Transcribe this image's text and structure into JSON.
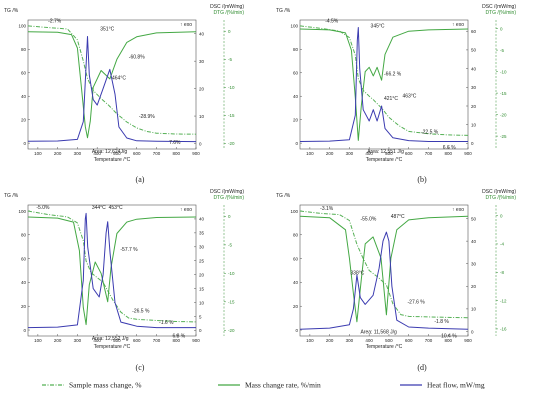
{
  "axis_labels": {
    "left_unit": "TG /%",
    "right_unit_dsc": "DSC /(mW/mg)",
    "right_unit_dtg": "DTG /(%/min)",
    "exo": "↑ exo",
    "x_label": "Temperature /°C"
  },
  "legend": {
    "items": [
      {
        "label": "Sample mass change, %",
        "color": "#55b055",
        "style": "dashdot"
      },
      {
        "label": "Mass change rate, %/min",
        "color": "#44a844",
        "style": "solid"
      },
      {
        "label": "Heat flow, mW/mg",
        "color": "#3b3bb0",
        "style": "solid"
      }
    ]
  },
  "colors": {
    "tg": "#55b055",
    "dtg": "#44a844",
    "dsc": "#3b3bb0",
    "axis": "#555555",
    "dtg_axis": "#2e8b2e"
  },
  "chart_data": [
    {
      "panel": "(a)",
      "type": "line",
      "xlim": [
        50,
        900
      ],
      "x_ticks": [
        100,
        200,
        300,
        400,
        500,
        600,
        700,
        800,
        900
      ],
      "tg_ticks": [
        0,
        20,
        40,
        60,
        80,
        100
      ],
      "dsc_ticks": [
        0,
        10,
        20,
        30,
        40
      ],
      "dtg_ticks": [
        0,
        -5,
        -10,
        -15,
        -20
      ],
      "tg_lim": [
        -5,
        105
      ],
      "dsc_lim": [
        -2,
        45
      ],
      "dtg_lim": [
        -21,
        2
      ],
      "annotations": [
        "-2.7%",
        "351°C",
        "-60.8%",
        "464°C",
        "-28.9%",
        "7.6%",
        "Area: 12,624J/g"
      ],
      "series": [
        {
          "name": "Sample mass change, %",
          "axis": "tg",
          "x": [
            50,
            150,
            250,
            300,
            330,
            351,
            380,
            420,
            460,
            500,
            550,
            600,
            650,
            700,
            800,
            900
          ],
          "y": [
            100,
            98.6,
            97.3,
            88,
            70,
            55,
            45,
            38,
            32,
            25,
            18,
            13,
            10,
            8.5,
            7.8,
            7.6
          ]
        },
        {
          "name": "Mass change rate, %/min",
          "axis": "dtg",
          "x": [
            50,
            200,
            270,
            300,
            320,
            340,
            351,
            365,
            380,
            420,
            464,
            500,
            550,
            600,
            700,
            900
          ],
          "y": [
            -0.1,
            -0.2,
            -0.6,
            -3,
            -10,
            -17,
            -19,
            -16,
            -10,
            -7,
            -8.5,
            -5,
            -2,
            -1,
            -0.3,
            -0.1
          ]
        },
        {
          "name": "Heat flow, mW/mg",
          "axis": "dsc",
          "x": [
            50,
            200,
            300,
            330,
            345,
            351,
            360,
            380,
            400,
            430,
            464,
            490,
            510,
            550,
            600,
            700,
            900
          ],
          "y": [
            0.8,
            0.9,
            1.5,
            8,
            30,
            39,
            25,
            16,
            14,
            20,
            27,
            18,
            6,
            2,
            1,
            0.8,
            0.7
          ]
        }
      ]
    },
    {
      "panel": "(b)",
      "type": "line",
      "xlim": [
        50,
        900
      ],
      "x_ticks": [
        100,
        200,
        300,
        400,
        500,
        600,
        700,
        800,
        900
      ],
      "tg_ticks": [
        0,
        20,
        40,
        60,
        80,
        100
      ],
      "dsc_ticks": [
        0,
        10,
        20,
        30,
        40,
        50,
        60
      ],
      "dtg_ticks": [
        0,
        -5,
        -10,
        -15,
        -20,
        -25
      ],
      "tg_lim": [
        -5,
        105
      ],
      "dsc_lim": [
        -3,
        66
      ],
      "dtg_lim": [
        -28,
        2
      ],
      "annotations": [
        "-4.5%",
        "345°C",
        "-66.2 %",
        "421°C",
        "463°C",
        "-22.5 %",
        "6.6 %",
        "Area: 12,551 J/g"
      ],
      "series": [
        {
          "name": "Sample mass change, %",
          "axis": "tg",
          "x": [
            50,
            150,
            250,
            300,
            330,
            345,
            370,
            400,
            421,
            450,
            463,
            500,
            550,
            600,
            700,
            800,
            900
          ],
          "y": [
            100,
            98,
            95.5,
            90,
            75,
            55,
            45,
            40,
            37,
            32,
            30,
            22,
            15,
            10,
            8,
            7,
            6.6
          ]
        },
        {
          "name": "Mass change rate, %/min",
          "axis": "dtg",
          "x": [
            50,
            200,
            280,
            310,
            330,
            345,
            360,
            380,
            400,
            421,
            440,
            463,
            480,
            520,
            600,
            700,
            900
          ],
          "y": [
            -0.1,
            -0.3,
            -1,
            -5,
            -16,
            -26,
            -18,
            -10,
            -9,
            -11,
            -9,
            -12,
            -6,
            -2,
            -0.6,
            -0.3,
            -0.1
          ]
        },
        {
          "name": "Heat flow, mW/mg",
          "axis": "dsc",
          "x": [
            50,
            200,
            300,
            330,
            340,
            345,
            352,
            370,
            400,
            421,
            440,
            463,
            480,
            520,
            600,
            700,
            900
          ],
          "y": [
            1,
            1.2,
            2,
            15,
            55,
            62,
            40,
            18,
            12,
            18,
            12,
            20,
            8,
            3,
            1.5,
            1,
            1
          ]
        }
      ]
    },
    {
      "panel": "(c)",
      "type": "line",
      "xlim": [
        50,
        900
      ],
      "x_ticks": [
        100,
        200,
        300,
        400,
        500,
        600,
        700,
        800,
        900
      ],
      "tg_ticks": [
        0,
        20,
        40,
        60,
        80,
        100
      ],
      "dsc_ticks": [
        0,
        5,
        10,
        15,
        20,
        25,
        30,
        35,
        40
      ],
      "dtg_ticks": [
        0,
        -5,
        -10,
        -15,
        -20
      ],
      "tg_lim": [
        -5,
        105
      ],
      "dsc_lim": [
        -2,
        45
      ],
      "dtg_lim": [
        -21,
        2
      ],
      "annotations": [
        "-5.0%",
        "344°C",
        "453°C",
        "-57.7 %",
        "-26.5 %",
        "-1.6 %",
        "6.8 %",
        "Area: 12,552 J/g"
      ],
      "series": [
        {
          "name": "Sample mass change, %",
          "axis": "tg",
          "x": [
            50,
            150,
            250,
            300,
            330,
            344,
            370,
            400,
            430,
            453,
            480,
            520,
            560,
            600,
            700,
            800,
            900
          ],
          "y": [
            100,
            97,
            95,
            90,
            75,
            58,
            48,
            44,
            40,
            33,
            25,
            15,
            10,
            9,
            8,
            7.2,
            6.8
          ]
        },
        {
          "name": "Mass change rate, %/min",
          "axis": "dtg",
          "x": [
            50,
            200,
            280,
            310,
            330,
            344,
            360,
            390,
            420,
            453,
            470,
            500,
            550,
            600,
            700,
            900
          ],
          "y": [
            -0.1,
            -0.3,
            -1,
            -6,
            -16,
            -19,
            -12,
            -8,
            -10,
            -15,
            -9,
            -3,
            -1,
            -0.5,
            -0.2,
            -0.1
          ]
        },
        {
          "name": "Heat flow, mW/mg",
          "axis": "dsc",
          "x": [
            50,
            200,
            300,
            330,
            340,
            344,
            352,
            380,
            410,
            430,
            445,
            453,
            465,
            490,
            520,
            600,
            700,
            900
          ],
          "y": [
            1,
            1.2,
            2,
            18,
            40,
            42,
            30,
            15,
            12,
            20,
            35,
            39,
            28,
            10,
            3,
            1.5,
            1,
            1
          ]
        }
      ]
    },
    {
      "panel": "(d)",
      "type": "line",
      "xlim": [
        50,
        900
      ],
      "x_ticks": [
        100,
        200,
        300,
        400,
        500,
        600,
        700,
        800,
        900
      ],
      "tg_ticks": [
        0,
        20,
        40,
        60,
        80,
        100
      ],
      "dsc_ticks": [
        0,
        10,
        20,
        30,
        40,
        50
      ],
      "dtg_ticks": [
        0,
        -4,
        -8,
        -12,
        -16
      ],
      "tg_lim": [
        -5,
        105
      ],
      "dsc_lim": [
        -2,
        56
      ],
      "dtg_lim": [
        -17,
        1.5
      ],
      "annotations": [
        "-3.1%",
        "-55.0%",
        "487°C",
        "338°C",
        "-27.6 %",
        "-1.8 %",
        "10.4 %",
        "Area: 11,568 J/g"
      ],
      "series": [
        {
          "name": "Sample mass change, %",
          "axis": "tg",
          "x": [
            50,
            150,
            250,
            300,
            338,
            370,
            400,
            440,
            487,
            520,
            560,
            600,
            700,
            800,
            900
          ],
          "y": [
            100,
            98,
            96.9,
            92,
            72,
            60,
            50,
            45,
            38,
            22,
            13,
            11.5,
            11,
            10.6,
            10.4
          ]
        },
        {
          "name": "Mass change rate, %/min",
          "axis": "dtg",
          "x": [
            50,
            200,
            280,
            300,
            320,
            338,
            360,
            380,
            420,
            460,
            487,
            510,
            540,
            600,
            700,
            900
          ],
          "y": [
            -0.1,
            -0.3,
            -2,
            -6,
            -11,
            -15,
            -9,
            -4,
            -3,
            -6,
            -14,
            -6,
            -2,
            -0.6,
            -0.3,
            -0.1
          ]
        },
        {
          "name": "Heat flow, mW/mg",
          "axis": "dsc",
          "x": [
            50,
            200,
            300,
            320,
            338,
            355,
            380,
            420,
            450,
            470,
            487,
            500,
            515,
            540,
            600,
            700,
            900
          ],
          "y": [
            1,
            1.5,
            3,
            10,
            25,
            15,
            12,
            16,
            28,
            40,
            44,
            40,
            20,
            5,
            2,
            1.5,
            1
          ]
        }
      ]
    }
  ]
}
